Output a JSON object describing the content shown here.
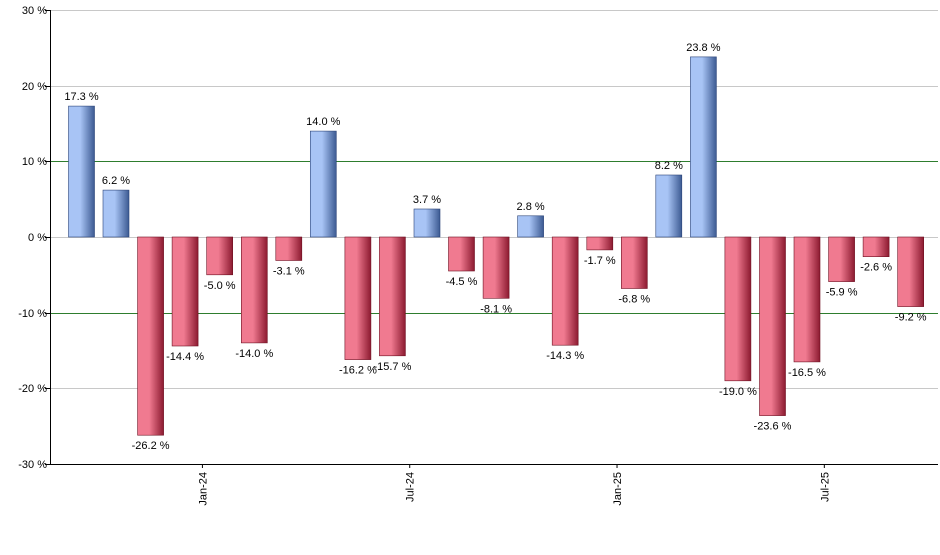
{
  "chart_data": {
    "type": "bar",
    "title": "",
    "xlabel": "",
    "ylabel": "",
    "ylim": [
      -30,
      30
    ],
    "y_ticks": [
      30,
      20,
      10,
      0,
      -10,
      -20,
      -30
    ],
    "y_tick_labels": [
      "30 %",
      "20 %",
      "10 %",
      "0 %",
      "-10 %",
      "-20 %",
      "-30 %"
    ],
    "highlight_lines": [
      10,
      -10
    ],
    "grid": true,
    "legend": "none",
    "x_tick_labels": [
      {
        "label": "Jan-24",
        "after_index": 3
      },
      {
        "label": "Jul-24",
        "after_index": 9
      },
      {
        "label": "Jan-25",
        "after_index": 15
      },
      {
        "label": "Jul-25",
        "after_index": 21
      }
    ],
    "values": [
      17.3,
      6.2,
      -26.2,
      -14.4,
      -5.0,
      -14.0,
      -3.1,
      14.0,
      -16.2,
      -15.7,
      3.7,
      -4.5,
      -8.1,
      2.8,
      -14.3,
      -1.7,
      -6.8,
      8.2,
      23.8,
      -19.0,
      -23.6,
      -16.5,
      -5.9,
      -2.6,
      -9.2
    ],
    "value_labels": [
      "17.3 %",
      "6.2 %",
      "-26.2 %",
      "-14.4 %",
      "-5.0 %",
      "-14.0 %",
      "-3.1 %",
      "14.0 %",
      "-16.2 %",
      "-15.7 %",
      "3.7 %",
      "-4.5 %",
      "-8.1 %",
      "2.8 %",
      "-14.3 %",
      "-1.7 %",
      "-6.8 %",
      "8.2 %",
      "23.8 %",
      "-19.0 %",
      "-23.6 %",
      "-16.5 %",
      "-5.9 %",
      "-2.6 %",
      "-9.2 %"
    ],
    "colors": {
      "positive_light": "#a8c4f5",
      "positive_dark": "#3c5a92",
      "negative_light": "#f07a90",
      "negative_dark": "#8c1a30",
      "highlight_line": "#2e7d2e",
      "grid": "#c8c8c8",
      "axis": "#000000"
    }
  }
}
